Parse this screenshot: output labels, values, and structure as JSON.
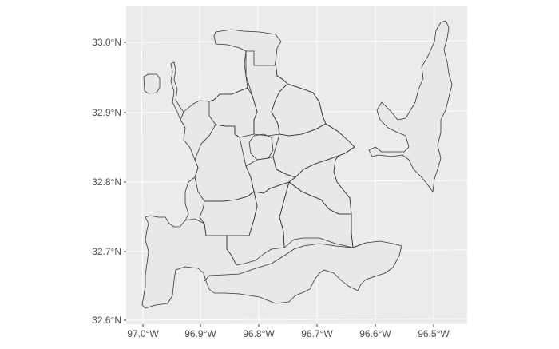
{
  "map": {
    "panel_background": "#ebebeb",
    "gridline_color": "#ffffff",
    "district_fill": "#e8e8e8",
    "district_stroke": "#333333",
    "axis_text_color": "#4d4d4d",
    "longitude_labels": [
      "97.0°W",
      "96.9°W",
      "96.8°W",
      "96.7°W",
      "96.6°W",
      "96.5°W"
    ],
    "latitude_labels": [
      "33.0°N",
      "32.9°N",
      "32.8°N",
      "32.7°N",
      "32.6°N"
    ]
  }
}
